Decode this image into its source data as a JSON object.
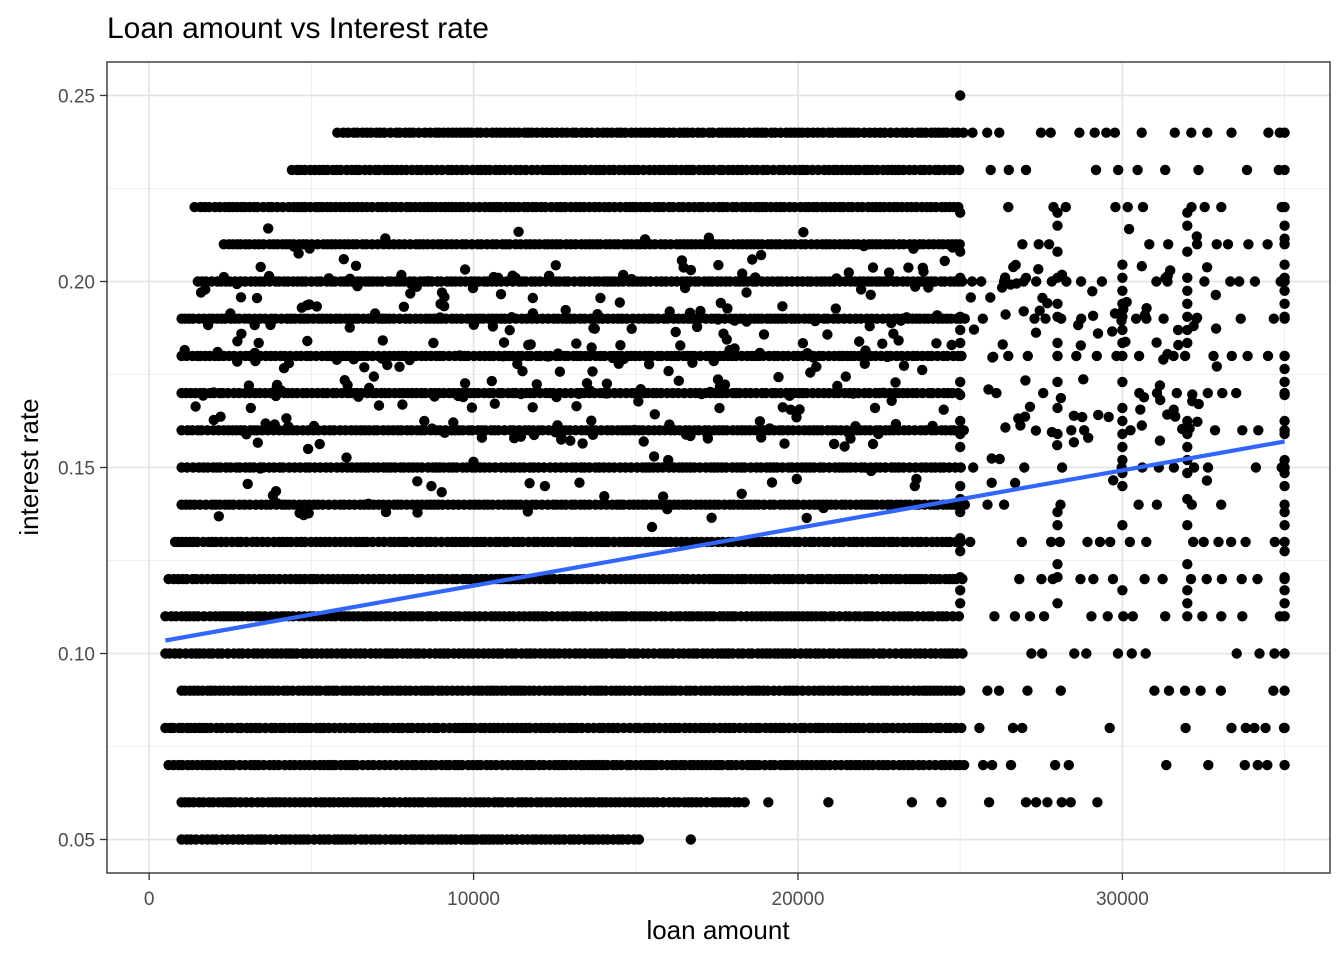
{
  "chart_data": {
    "type": "scatter",
    "title": "Loan amount vs Interest rate",
    "xlabel": "loan amount",
    "ylabel": "interest rate",
    "xlim": [
      -1300,
      36400
    ],
    "ylim": [
      0.041,
      0.259
    ],
    "x_ticks": [
      0,
      10000,
      20000,
      30000
    ],
    "x_tick_labels": [
      "0",
      "10000",
      "20000",
      "30000"
    ],
    "y_ticks": [
      0.05,
      0.1,
      0.15,
      0.2,
      0.25
    ],
    "y_tick_labels": [
      "0.05",
      "0.10",
      "0.15",
      "0.20",
      "0.25"
    ],
    "grid": true,
    "rate_bands": [
      {
        "y": 0.05,
        "from": 1000,
        "to": 15000,
        "sparse_to": 16800
      },
      {
        "y": 0.06,
        "from": 1000,
        "to": 18500,
        "sparse_to": 30000
      },
      {
        "y": 0.07,
        "from": 600,
        "to": 25000,
        "sparse_to": 35000
      },
      {
        "y": 0.08,
        "from": 500,
        "to": 32000,
        "sparse_to": 35000
      },
      {
        "y": 0.09,
        "from": 1000,
        "to": 25000,
        "sparse_to": 35000
      },
      {
        "y": 0.1,
        "from": 500,
        "to": 30000,
        "sparse_to": 35000
      },
      {
        "y": 0.11,
        "from": 500,
        "to": 35000,
        "sparse_to": 35000
      },
      {
        "y": 0.12,
        "from": 600,
        "to": 35000,
        "sparse_to": 35000
      },
      {
        "y": 0.13,
        "from": 800,
        "to": 35000,
        "sparse_to": 35000
      },
      {
        "y": 0.14,
        "from": 1000,
        "to": 35000,
        "sparse_to": 35000
      },
      {
        "y": 0.15,
        "from": 1000,
        "to": 35000,
        "sparse_to": 35000
      },
      {
        "y": 0.16,
        "from": 1000,
        "to": 35000,
        "sparse_to": 35000
      },
      {
        "y": 0.17,
        "from": 1000,
        "to": 35000,
        "sparse_to": 35000
      },
      {
        "y": 0.18,
        "from": 1000,
        "to": 35000,
        "sparse_to": 35000
      },
      {
        "y": 0.19,
        "from": 1000,
        "to": 35000,
        "sparse_to": 35000
      },
      {
        "y": 0.2,
        "from": 1500,
        "to": 35000,
        "sparse_to": 35000
      },
      {
        "y": 0.21,
        "from": 2300,
        "to": 35000,
        "sparse_to": 35000
      },
      {
        "y": 0.22,
        "from": 1400,
        "to": 35000,
        "sparse_to": 35000
      },
      {
        "y": 0.23,
        "from": 4400,
        "to": 35000,
        "sparse_to": 35000
      },
      {
        "y": 0.24,
        "from": 5800,
        "to": 35000,
        "sparse_to": 35000
      }
    ],
    "extra_points": [
      {
        "x": 25000,
        "y": 0.25
      },
      {
        "x": 15500,
        "y": 0.134
      },
      {
        "x": 16000,
        "y": 0.152
      },
      {
        "x": 6000,
        "y": 0.206
      },
      {
        "x": 4900,
        "y": 0.155
      },
      {
        "x": 7300,
        "y": 0.138
      },
      {
        "x": 8700,
        "y": 0.145
      },
      {
        "x": 12200,
        "y": 0.145
      },
      {
        "x": 19200,
        "y": 0.146
      },
      {
        "x": 23600,
        "y": 0.145
      }
    ],
    "trend_line": {
      "type": "linear",
      "color": "#3366FF",
      "x": [
        500,
        35000
      ],
      "y": [
        0.1035,
        0.157
      ]
    },
    "point_color": "#000000"
  }
}
